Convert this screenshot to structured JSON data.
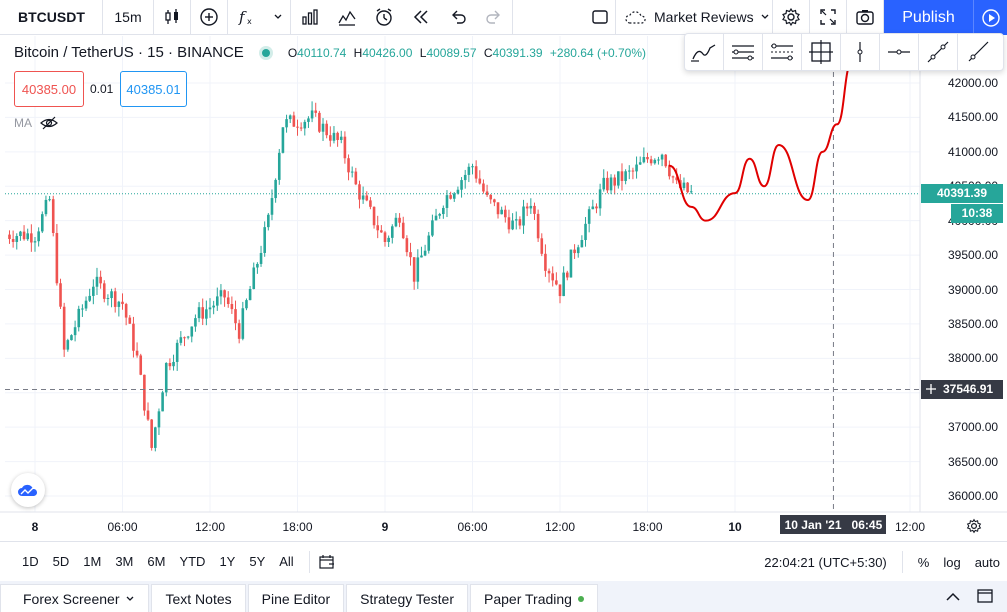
{
  "toolbar": {
    "symbol": "BTCUSDT",
    "interval": "15m",
    "layout_name": "Market Reviews",
    "publish_label": "Publish"
  },
  "legend": {
    "title": "Bitcoin / TetherUS · 15 · BINANCE",
    "o_label": "O",
    "o": "40110.74",
    "h_label": "H",
    "h": "40426.00",
    "l_label": "L",
    "l": "40089.57",
    "c_label": "C",
    "c": "40391.39",
    "change": "+280.64 (+0.70%)"
  },
  "trade": {
    "sell_price": "40385.00",
    "spread": "0.01",
    "buy_price": "40385.01"
  },
  "indicator": {
    "label": "MA"
  },
  "price_axis": {
    "ticks": [
      "42000.00",
      "41500.00",
      "41000.00",
      "40500.00",
      "40000.00",
      "39500.00",
      "39000.00",
      "38500.00",
      "38000.00",
      "37500.00",
      "37000.00",
      "36500.00",
      "36000.00"
    ],
    "current_price": "40391.39",
    "countdown": "10:38",
    "crosshair_price": "37546.91"
  },
  "time_axis": {
    "ticks": [
      "8",
      "06:00",
      "12:00",
      "18:00",
      "9",
      "06:00",
      "12:00",
      "18:00",
      "10",
      "12:00"
    ],
    "crosshair_date": "10 Jan '21",
    "crosshair_time": "06:45"
  },
  "chart_data": {
    "type": "candlestick",
    "symbol": "BTCUSDT",
    "interval": "15m",
    "ylim": [
      35900,
      42200
    ],
    "current_price": 40391.39,
    "crosshair_price": 37546.91,
    "close_path": [
      {
        "time": "Jan 8 00:00",
        "price": 39800
      },
      {
        "time": "Jan 8 01:00",
        "price": 40300
      },
      {
        "time": "Jan 8 02:00",
        "price": 38100
      },
      {
        "time": "Jan 8 04:00",
        "price": 39100
      },
      {
        "time": "Jan 8 06:00",
        "price": 38800
      },
      {
        "time": "Jan 8 07:00",
        "price": 38000
      },
      {
        "time": "Jan 8 08:00",
        "price": 36700
      },
      {
        "time": "Jan 8 09:00",
        "price": 37900
      },
      {
        "time": "Jan 8 11:00",
        "price": 38600
      },
      {
        "time": "Jan 8 13:00",
        "price": 38900
      },
      {
        "time": "Jan 8 14:00",
        "price": 38400
      },
      {
        "time": "Jan 8 16:00",
        "price": 40000
      },
      {
        "time": "Jan 8 17:00",
        "price": 41400
      },
      {
        "time": "Jan 8 19:00",
        "price": 41500
      },
      {
        "time": "Jan 8 21:00",
        "price": 41100
      },
      {
        "time": "Jan 8 22:00",
        "price": 40500
      },
      {
        "time": "Jan 9 00:00",
        "price": 39700
      },
      {
        "time": "Jan 9 01:00",
        "price": 40100
      },
      {
        "time": "Jan 9 02:00",
        "price": 39200
      },
      {
        "time": "Jan 9 04:00",
        "price": 40300
      },
      {
        "time": "Jan 9 06:00",
        "price": 40800
      },
      {
        "time": "Jan 9 07:00",
        "price": 40300
      },
      {
        "time": "Jan 9 09:00",
        "price": 39900
      },
      {
        "time": "Jan 9 10:00",
        "price": 40300
      },
      {
        "time": "Jan 9 11:00",
        "price": 39400
      },
      {
        "time": "Jan 9 12:00",
        "price": 39000
      },
      {
        "time": "Jan 9 13:00",
        "price": 39600
      },
      {
        "time": "Jan 9 15:00",
        "price": 40500
      },
      {
        "time": "Jan 9 17:00",
        "price": 40700
      },
      {
        "time": "Jan 9 18:00",
        "price": 40900
      },
      {
        "time": "Jan 9 19:00",
        "price": 41000
      },
      {
        "time": "Jan 9 20:00",
        "price": 40500
      },
      {
        "time": "Jan 9 21:00",
        "price": 40391.39
      }
    ],
    "drawn_forecast_line": [
      {
        "time": "Jan 9 19:30",
        "price": 40800
      },
      {
        "time": "Jan 9 21:00",
        "price": 40200
      },
      {
        "time": "Jan 9 22:00",
        "price": 40000
      },
      {
        "time": "Jan 10 00:00",
        "price": 40400
      },
      {
        "time": "Jan 10 01:00",
        "price": 40900
      },
      {
        "time": "Jan 10 02:00",
        "price": 40500
      },
      {
        "time": "Jan 10 03:00",
        "price": 41100
      },
      {
        "time": "Jan 10 05:00",
        "price": 40300
      },
      {
        "time": "Jan 10 06:00",
        "price": 41000
      },
      {
        "time": "Jan 10 07:00",
        "price": 41400
      },
      {
        "time": "Jan 10 08:00",
        "price": 42300
      }
    ]
  },
  "bottom": {
    "ranges": [
      "1D",
      "5D",
      "1M",
      "3M",
      "6M",
      "YTD",
      "1Y",
      "5Y",
      "All"
    ],
    "clock": "22:04:21 (UTC+5:30)",
    "percent": "%",
    "log": "log",
    "auto": "auto"
  },
  "panels": {
    "tabs": [
      "Forex Screener",
      "Text Notes",
      "Pine Editor",
      "Strategy Tester",
      "Paper Trading"
    ]
  },
  "colors": {
    "up": "#26a69a",
    "down": "#ef5350",
    "drawing": "#e00000",
    "accent": "#2962ff"
  }
}
